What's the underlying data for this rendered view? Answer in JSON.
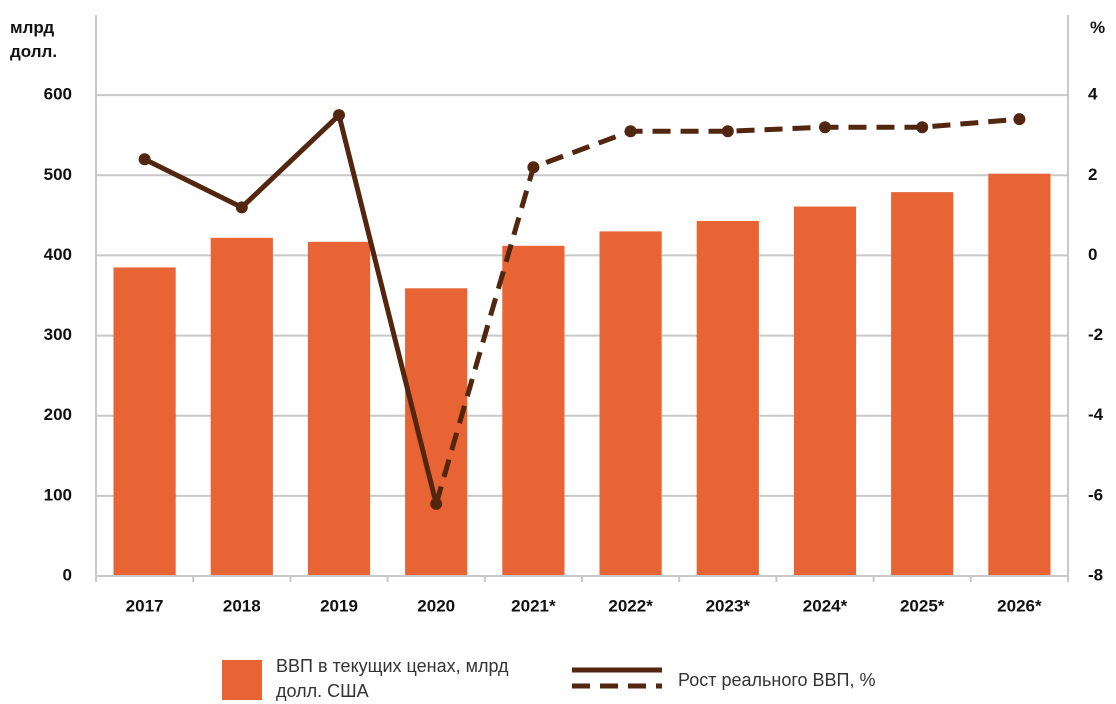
{
  "chart_data": {
    "type": "bar_line",
    "y_label": "млрд долл.",
    "y2_label": "%",
    "categories": [
      "2017",
      "2018",
      "2019",
      "2020",
      "2021*",
      "2022*",
      "2023*",
      "2024*",
      "2025*",
      "2026*"
    ],
    "series": [
      {
        "name": "ВВП в текущих ценах, млрд долл. США",
        "type": "bar",
        "color": "#e96434",
        "values": [
          385,
          422,
          417,
          359,
          412,
          430,
          443,
          461,
          479,
          502
        ]
      },
      {
        "name": "Рост реального ВВП, %",
        "type": "line",
        "axis": "y2",
        "color": "#52260f",
        "dashed_from": "2020",
        "values": [
          2.4,
          1.2,
          3.5,
          -6.2,
          2.2,
          3.1,
          3.1,
          3.2,
          3.2,
          3.4
        ]
      }
    ],
    "ylim": [
      0,
      700
    ],
    "yticks": [
      0,
      100,
      200,
      300,
      400,
      500,
      600
    ],
    "y2lim": [
      -8,
      6
    ],
    "y2ticks": [
      -8,
      -6,
      -4,
      -2,
      0,
      2,
      4
    ],
    "grid": true,
    "legend": "bottom"
  }
}
